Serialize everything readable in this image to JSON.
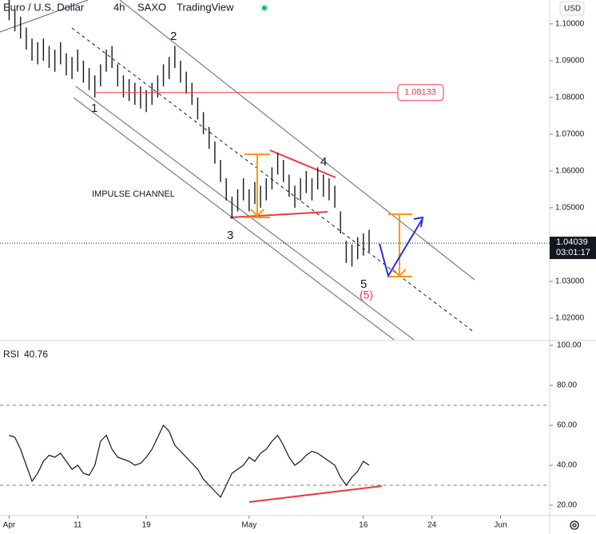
{
  "chart_data": [
    {
      "type": "ohlc",
      "title": "Euro / U.S. Dollar",
      "interval": "4h",
      "source": "SAXO",
      "platform": "TradingView",
      "currency": "USD",
      "color": "#131722",
      "x": [
        0,
        0.5,
        1,
        1.5,
        2,
        2.5,
        3,
        3.5,
        4,
        4.5,
        5,
        5.5,
        6,
        6.5,
        7,
        7.5,
        8,
        8.5,
        9,
        9.5,
        10,
        10.5,
        11,
        11.5,
        12,
        12.5,
        13,
        13.5,
        14,
        14.5,
        15,
        15.5,
        16,
        16.5,
        17,
        17.5,
        18,
        18.5,
        19,
        19.5,
        20,
        20.5,
        21,
        21.5,
        22,
        22.5,
        23,
        23.5,
        24,
        24.5,
        25,
        25.5,
        26,
        26.5,
        27,
        27.5,
        28,
        28.5,
        29,
        29.5,
        30,
        30.5,
        31,
        31.5
      ],
      "high": [
        1.107,
        1.104,
        1.102,
        1.099,
        1.096,
        1.095,
        1.096,
        1.094,
        1.093,
        1.095,
        1.092,
        1.091,
        1.093,
        1.09,
        1.088,
        1.086,
        1.089,
        1.093,
        1.094,
        1.089,
        1.086,
        1.085,
        1.084,
        1.083,
        1.082,
        1.084,
        1.086,
        1.089,
        1.091,
        1.094,
        1.09,
        1.087,
        1.084,
        1.08,
        1.076,
        1.072,
        1.068,
        1.063,
        1.058,
        1.053,
        1.055,
        1.058,
        1.055,
        1.057,
        1.056,
        1.058,
        1.061,
        1.065,
        1.063,
        1.059,
        1.056,
        1.058,
        1.06,
        1.058,
        1.061,
        1.059,
        1.058,
        1.056,
        1.049,
        1.041,
        1.04,
        1.042,
        1.043,
        1.044
      ],
      "low": [
        1.101,
        1.098,
        1.096,
        1.093,
        1.09,
        1.089,
        1.09,
        1.088,
        1.087,
        1.089,
        1.086,
        1.085,
        1.087,
        1.084,
        1.082,
        1.08,
        1.083,
        1.087,
        1.088,
        1.083,
        1.08,
        1.079,
        1.078,
        1.077,
        1.076,
        1.078,
        1.08,
        1.083,
        1.085,
        1.088,
        1.084,
        1.081,
        1.078,
        1.074,
        1.07,
        1.066,
        1.062,
        1.057,
        1.052,
        1.047,
        1.049,
        1.052,
        1.049,
        1.051,
        1.05,
        1.052,
        1.055,
        1.059,
        1.057,
        1.053,
        1.05,
        1.052,
        1.054,
        1.052,
        1.055,
        1.053,
        1.052,
        1.05,
        1.043,
        1.035,
        1.034,
        1.036,
        1.037,
        1.038
      ],
      "xlim": [
        -0.8,
        47.3
      ],
      "xticks": [
        {
          "value": 0,
          "label": "Apr"
        },
        {
          "value": 6,
          "label": "11"
        },
        {
          "value": 12,
          "label": "19"
        },
        {
          "value": 21,
          "label": "May"
        },
        {
          "value": 31,
          "label": "16"
        },
        {
          "value": 37,
          "label": "24"
        },
        {
          "value": 43,
          "label": "Jun"
        }
      ],
      "ylim": [
        1.0141,
        1.1065
      ],
      "yticks": [
        {
          "value": 1.1,
          "label": "1.10000"
        },
        {
          "value": 1.09,
          "label": "1.09000"
        },
        {
          "value": 1.08,
          "label": "1.08000"
        },
        {
          "value": 1.07,
          "label": "1.07000"
        },
        {
          "value": 1.06,
          "label": "1.06000"
        },
        {
          "value": 1.05,
          "label": "1.05000"
        },
        {
          "value": 1.03,
          "label": "1.03000"
        },
        {
          "value": 1.02,
          "label": "1.02000"
        }
      ],
      "level": 1.08133,
      "last_price": 1.04039,
      "countdown": "03:01:17",
      "annotations": [
        "1",
        "2",
        "3",
        "4",
        "5",
        "(5)",
        "IMPULSE CHANNEL"
      ]
    },
    {
      "type": "line",
      "title": "RSI",
      "last_value": 40.76,
      "color": "#131722",
      "values": [
        55,
        54,
        48,
        40,
        32,
        36,
        42,
        45,
        44,
        46,
        42,
        38,
        40,
        36,
        35,
        40,
        52,
        55,
        48,
        44,
        43,
        42,
        40,
        41,
        44,
        48,
        54,
        60,
        57,
        50,
        47,
        44,
        41,
        38,
        33,
        30,
        27,
        24,
        30,
        36,
        38,
        40,
        44,
        42,
        46,
        48,
        52,
        55,
        50,
        44,
        40,
        42,
        45,
        47,
        46,
        44,
        42,
        40,
        34,
        30,
        34,
        37,
        42,
        40
      ],
      "ylim": [
        14.8,
        101.6
      ],
      "yticks": [
        {
          "value": 100,
          "label": "100.00"
        },
        {
          "value": 80,
          "label": "80.00"
        },
        {
          "value": 60,
          "label": "60.00"
        },
        {
          "value": 40,
          "label": "40.00"
        },
        {
          "value": 20,
          "label": "20.00"
        }
      ],
      "bands": [
        70,
        30
      ]
    }
  ]
}
